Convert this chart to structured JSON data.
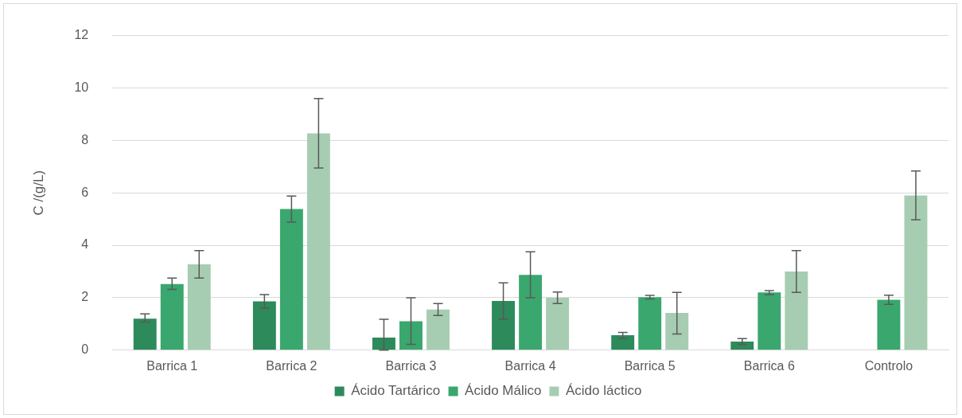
{
  "chart_data": {
    "type": "bar",
    "ylabel": "C /(g/L)",
    "categories": [
      "Barrica 1",
      "Barrica 2",
      "Barrica 3",
      "Barrica 4",
      "Barrica 5",
      "Barrica 6",
      "Controlo"
    ],
    "series": [
      {
        "name": "Ácido Tartárico",
        "color": "#2d8a5a",
        "values": [
          1.2,
          1.86,
          0.48,
          1.88,
          0.57,
          0.33,
          null
        ],
        "errors": [
          [
            1.07,
            1.38
          ],
          [
            1.6,
            2.12
          ],
          [
            0,
            1.18
          ],
          [
            1.18,
            2.57
          ],
          [
            0.45,
            0.68
          ],
          [
            0.22,
            0.44
          ],
          null
        ]
      },
      {
        "name": "Ácido Málico",
        "color": "#3aa76e",
        "values": [
          2.52,
          5.38,
          1.1,
          2.87,
          2.02,
          2.2,
          1.92
        ],
        "errors": [
          [
            2.32,
            2.75
          ],
          [
            4.88,
            5.88
          ],
          [
            0.22,
            2.0
          ],
          [
            2.0,
            3.75
          ],
          [
            1.95,
            2.09
          ],
          [
            2.12,
            2.27
          ],
          [
            1.75,
            2.1
          ]
        ]
      },
      {
        "name": "Ácido láctico",
        "color": "#a6cdb1",
        "values": [
          3.27,
          8.27,
          1.55,
          2.0,
          1.42,
          3.0,
          5.9
        ],
        "errors": [
          [
            2.75,
            3.8
          ],
          [
            6.95,
            9.6
          ],
          [
            1.32,
            1.78
          ],
          [
            1.78,
            2.22
          ],
          [
            0.62,
            2.2
          ],
          [
            2.2,
            3.8
          ],
          [
            4.97,
            6.83
          ]
        ]
      }
    ],
    "ylim": [
      0,
      12
    ],
    "yticks": [
      0,
      2,
      4,
      6,
      8,
      10,
      12
    ],
    "grid": "y",
    "legend": "bottom"
  }
}
